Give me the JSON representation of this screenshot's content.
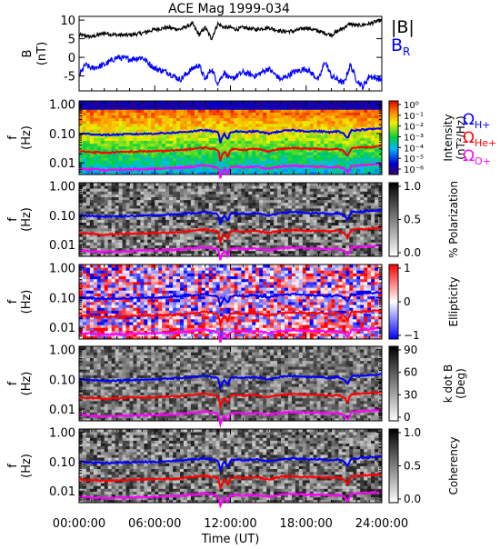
{
  "chart_data": [
    {
      "type": "line",
      "title": "ACE Mag 1999-034",
      "ylabel": "B (nT)",
      "ylim": [
        -9,
        11
      ],
      "yticks": [
        -5,
        0,
        5,
        10
      ],
      "series": [
        {
          "name": "|B|",
          "color": "#000000",
          "x": [
            0,
            1,
            2,
            3,
            4,
            5,
            6,
            7,
            8,
            9,
            9.5,
            10,
            10.5,
            11,
            11.5,
            12,
            12.5,
            13,
            14,
            15,
            16,
            17,
            18,
            19,
            20,
            21,
            21.5,
            22,
            23,
            24
          ],
          "values": [
            6,
            5.5,
            6.5,
            6,
            6,
            6.5,
            7.5,
            8,
            7.5,
            9,
            6,
            8,
            5,
            9,
            8,
            8,
            7.5,
            8,
            7.5,
            8,
            7,
            7,
            8,
            7,
            6,
            8,
            9,
            8.5,
            9,
            10
          ]
        },
        {
          "name": "B_R",
          "color": "#0000ff",
          "x": [
            0,
            0.5,
            1,
            2,
            3,
            4,
            5,
            6,
            7,
            8,
            9,
            9.5,
            10,
            10.5,
            11,
            11.5,
            12,
            12.5,
            13,
            14,
            15,
            16,
            17,
            18,
            19,
            19.5,
            20,
            21,
            21.5,
            22,
            22.5,
            23,
            24
          ],
          "values": [
            -5,
            -2,
            -3,
            -2,
            0,
            -0.5,
            0,
            -3,
            -4,
            -6,
            -3,
            -2,
            -6,
            -3,
            -7,
            -4,
            -6,
            -5,
            -4,
            -5,
            -3,
            -6,
            -4,
            -3,
            -6,
            -1,
            -5,
            -7,
            -2,
            -6,
            -8,
            -5,
            -6
          ]
        }
      ]
    },
    {
      "type": "heatmap",
      "colorbar_label": "Intensity (nT²/Hz)",
      "colorbar_ticks": [
        "10⁰",
        "10⁻¹",
        "10⁻²",
        "10⁻³",
        "10⁻⁴",
        "10⁻⁵",
        "10⁻⁶"
      ],
      "colorbar_range": [
        -6.5,
        0
      ],
      "colorscale": "rainbow"
    },
    {
      "type": "heatmap",
      "colorbar_label": "% Polarization",
      "colorbar_ticks": [
        "1.0",
        "0.5",
        "0.0"
      ],
      "colorbar_range": [
        0,
        1
      ],
      "colorscale": "gray"
    },
    {
      "type": "heatmap",
      "colorbar_label": "Ellipticity",
      "colorbar_ticks": [
        "1",
        "0",
        "−1"
      ],
      "colorbar_range": [
        -1,
        1
      ],
      "colorscale": "bwr"
    },
    {
      "type": "heatmap",
      "colorbar_label": "k dot B (Deg)",
      "colorbar_ticks": [
        "90",
        "60",
        "30",
        "0"
      ],
      "colorbar_range": [
        0,
        90
      ],
      "colorscale": "gray"
    },
    {
      "type": "heatmap",
      "colorbar_label": "Coherency",
      "colorbar_ticks": [
        "1.0",
        "0.5",
        "0.0"
      ],
      "colorbar_range": [
        0,
        1
      ],
      "colorscale": "gray"
    }
  ],
  "spectrogram_axis": {
    "ylabel_f": "f",
    "ylabel_unit": "(Hz)",
    "yticks": [
      1.0,
      0.1,
      0.01
    ],
    "yticks_text": [
      "1.00",
      "0.10",
      "0.01"
    ],
    "ylim": [
      0.004,
      1.3
    ]
  },
  "gyro_lines": [
    {
      "name": "Ω",
      "sub": "H+",
      "color": "#0000ff",
      "x": [
        0,
        2,
        4,
        6,
        8,
        9,
        10,
        10.5,
        11,
        11.2,
        11.5,
        11.8,
        12,
        12.5,
        13,
        14,
        15,
        16,
        17,
        18,
        19,
        20,
        20.5,
        21,
        21.3,
        21.6,
        22,
        23,
        24
      ],
      "f": [
        0.1,
        0.09,
        0.095,
        0.1,
        0.11,
        0.12,
        0.13,
        0.12,
        0.11,
        0.05,
        0.1,
        0.06,
        0.11,
        0.12,
        0.11,
        0.12,
        0.1,
        0.12,
        0.13,
        0.12,
        0.12,
        0.11,
        0.12,
        0.1,
        0.07,
        0.13,
        0.13,
        0.14,
        0.15
      ]
    },
    {
      "name": "Ω",
      "sub": "He+",
      "color": "#ff0000",
      "x": [
        0,
        2,
        4,
        6,
        8,
        9,
        10,
        10.5,
        11,
        11.2,
        11.5,
        11.8,
        12,
        12.5,
        13,
        14,
        15,
        16,
        17,
        18,
        19,
        20,
        20.5,
        21,
        21.3,
        21.6,
        22,
        23,
        24
      ],
      "f": [
        0.025,
        0.022,
        0.024,
        0.025,
        0.027,
        0.03,
        0.033,
        0.03,
        0.028,
        0.012,
        0.025,
        0.015,
        0.028,
        0.03,
        0.028,
        0.03,
        0.025,
        0.03,
        0.032,
        0.03,
        0.03,
        0.028,
        0.03,
        0.025,
        0.017,
        0.032,
        0.033,
        0.035,
        0.037
      ]
    },
    {
      "name": "Ω",
      "sub": "O+",
      "color": "#ff00ff",
      "x": [
        0,
        2,
        4,
        6,
        8,
        9,
        10,
        10.5,
        11,
        11.2,
        11.5,
        11.8,
        12,
        12.5,
        13,
        14,
        15,
        16,
        17,
        18,
        19,
        20,
        20.5,
        21,
        21.3,
        21.6,
        22,
        23,
        24
      ],
      "f": [
        0.0063,
        0.0056,
        0.006,
        0.0063,
        0.0068,
        0.0075,
        0.0082,
        0.0075,
        0.007,
        0.003,
        0.0063,
        0.0038,
        0.007,
        0.0075,
        0.007,
        0.0075,
        0.0063,
        0.0075,
        0.008,
        0.0075,
        0.0075,
        0.007,
        0.0075,
        0.0063,
        0.0043,
        0.008,
        0.0082,
        0.0088,
        0.0093
      ]
    }
  ],
  "xaxis": {
    "label": "Time (UT)",
    "xlim": [
      0,
      24
    ],
    "ticks": [
      0,
      6,
      12,
      18,
      24
    ],
    "tick_labels": [
      "00:00:00",
      "06:00:00",
      "12:00:00",
      "18:00:00",
      "24:00:00"
    ]
  },
  "legend_top": [
    {
      "text": "|B|",
      "color": "#000000"
    },
    {
      "text": "B",
      "sub": "R",
      "color": "#0000ff"
    }
  ]
}
